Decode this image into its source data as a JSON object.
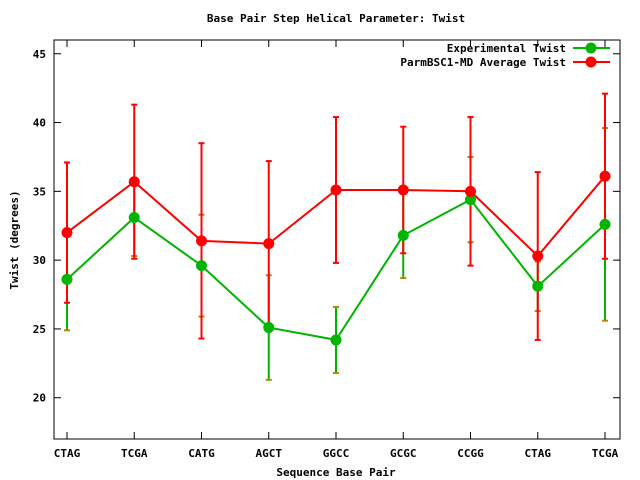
{
  "chart_data": {
    "type": "line",
    "title": "Base Pair Step Helical Parameter: Twist",
    "xlabel": "Sequence Base Pair",
    "ylabel": "Twist (degrees)",
    "categories": [
      "CTAG",
      "TCGA",
      "CATG",
      "AGCT",
      "GGCC",
      "GCGC",
      "CCGG",
      "CTAG",
      "TCGA"
    ],
    "ylim": [
      17,
      46
    ],
    "yticks": [
      20,
      25,
      30,
      35,
      40,
      45
    ],
    "grid": false,
    "legend_position": "top-right",
    "series": [
      {
        "name": "Experimental Twist",
        "color": "#00b400",
        "errorbar_color": "#c08000",
        "values": [
          28.6,
          33.1,
          29.6,
          25.1,
          24.2,
          31.8,
          34.4,
          28.1,
          32.6
        ],
        "errors": [
          3.7,
          2.8,
          3.7,
          3.8,
          2.4,
          3.1,
          3.1,
          1.8,
          7.0
        ]
      },
      {
        "name": "ParmBSC1-MD Average Twist",
        "color": "#ff0000",
        "errorbar_color": "#ff0000",
        "values": [
          32.0,
          35.7,
          31.4,
          31.2,
          35.1,
          35.1,
          35.0,
          30.3,
          36.1
        ],
        "errors": [
          5.1,
          5.6,
          7.1,
          6.0,
          5.3,
          4.6,
          5.4,
          6.1,
          6.0
        ]
      }
    ]
  }
}
